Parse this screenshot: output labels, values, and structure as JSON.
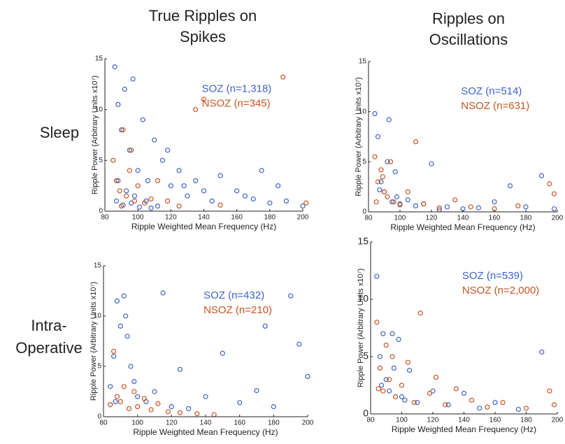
{
  "column_titles": [
    "True Ripples on Spikes",
    "Ripples on Oscillations"
  ],
  "row_labels": [
    "Sleep",
    "Intra-Operative"
  ],
  "chart_data": [
    {
      "type": "scatter",
      "xlabel": "Ripple Weighted Mean Frequency (Hz)",
      "ylabel": "Ripple Power (Arbitrary Units x10⁷)",
      "xlim": [
        80,
        200
      ],
      "ylim": [
        0,
        15
      ],
      "xticks": [
        80,
        100,
        120,
        140,
        160,
        180,
        200
      ],
      "yticks": [
        0,
        5,
        10,
        15
      ],
      "series": [
        {
          "name": "SOZ (n=1,318)",
          "color": "#3d63c9",
          "x": [
            86,
            88,
            90,
            92,
            95,
            97,
            100,
            103,
            106,
            110,
            115,
            120,
            125,
            130,
            135,
            140,
            145,
            150,
            160,
            170,
            180,
            190,
            200,
            88,
            93,
            98,
            105,
            112,
            118,
            128,
            87,
            91,
            96,
            101,
            108,
            165,
            175,
            185
          ],
          "y": [
            14.2,
            10.5,
            8,
            12,
            6,
            13,
            4,
            9,
            3,
            7,
            5,
            2.5,
            4,
            1.5,
            3,
            2,
            1,
            3.5,
            2,
            1.2,
            0.8,
            1,
            0.5,
            3,
            2,
            1.5,
            1,
            0.5,
            6,
            2.5,
            1,
            0.6,
            0.8,
            0.4,
            0.3,
            1.5,
            4,
            2.5
          ]
        },
        {
          "name": "NSOZ (n=345)",
          "color": "#c65422",
          "x": [
            85,
            87,
            89,
            91,
            93,
            95,
            98,
            100,
            104,
            108,
            112,
            118,
            125,
            135,
            140,
            150,
            188,
            202,
            90,
            96
          ],
          "y": [
            5,
            3,
            2,
            8,
            1.5,
            4,
            1,
            2.5,
            0.8,
            1.2,
            3,
            1,
            0.5,
            10,
            11,
            0.6,
            13.2,
            0.8,
            0.5,
            6
          ]
        }
      ]
    },
    {
      "type": "scatter",
      "xlabel": "Ripple Weighted Mean Frequency (Hz)",
      "ylabel": "Ripple Power (Arbitrary Units x10⁷)",
      "xlim": [
        80,
        200
      ],
      "ylim": [
        0,
        15
      ],
      "xticks": [
        80,
        100,
        120,
        140,
        160,
        180,
        200
      ],
      "yticks": [
        0,
        5,
        10,
        15
      ],
      "series": [
        {
          "name": "SOZ (n=514)",
          "color": "#3d63c9",
          "x": [
            84,
            86,
            88,
            90,
            92,
            95,
            98,
            100,
            105,
            110,
            120,
            130,
            140,
            150,
            160,
            170,
            180,
            190,
            198,
            87,
            93,
            97,
            115,
            125
          ],
          "y": [
            9.8,
            7.5,
            3,
            2,
            5,
            1,
            1.5,
            0.8,
            1.2,
            0.6,
            4.8,
            0.5,
            0.3,
            0.4,
            1,
            2.6,
            0.5,
            3.6,
            0.3,
            2.2,
            9.2,
            4,
            0.8,
            0.2
          ]
        },
        {
          "name": "NSOZ (n=631)",
          "color": "#c65422",
          "x": [
            84,
            86,
            88,
            90,
            92,
            94,
            96,
            100,
            105,
            110,
            115,
            125,
            135,
            145,
            160,
            175,
            195,
            198,
            85,
            89
          ],
          "y": [
            5.5,
            3,
            4.2,
            2,
            1.5,
            5,
            1,
            0.7,
            2,
            7,
            0.8,
            0.4,
            1.2,
            0.5,
            0.3,
            0.6,
            2.8,
            1.8,
            1,
            3.5
          ]
        }
      ]
    },
    {
      "type": "scatter",
      "xlabel": "Ripple Weighted Mean Frequency (Hz)",
      "ylabel": "Ripple Power (Arbitrary Units x10⁷)",
      "xlim": [
        80,
        200
      ],
      "ylim": [
        0,
        15
      ],
      "xticks": [
        80,
        100,
        120,
        140,
        160,
        180,
        200
      ],
      "yticks": [
        0,
        5,
        10,
        15
      ],
      "series": [
        {
          "name": "SOZ (n=432)",
          "color": "#3d63c9",
          "x": [
            84,
            86,
            88,
            90,
            92,
            94,
            96,
            98,
            100,
            105,
            110,
            115,
            120,
            125,
            130,
            140,
            150,
            160,
            170,
            175,
            180,
            190,
            195,
            200,
            87,
            93
          ],
          "y": [
            3,
            6,
            11.5,
            9,
            12,
            8,
            5,
            3.5,
            2,
            1.5,
            2.5,
            12.3,
            1,
            4.7,
            0.8,
            2,
            6.3,
            1.4,
            2.6,
            9,
            1,
            12,
            7.2,
            4,
            1.5,
            10
          ]
        },
        {
          "name": "NSOZ (n=210)",
          "color": "#c65422",
          "x": [
            84,
            86,
            88,
            90,
            92,
            95,
            98,
            100,
            104,
            108,
            112,
            118,
            125,
            135,
            145
          ],
          "y": [
            1.2,
            6.5,
            2,
            1.5,
            3,
            0.8,
            2.5,
            1,
            1.8,
            0.7,
            1.3,
            0.5,
            0.4,
            0.3,
            0.2
          ]
        }
      ]
    },
    {
      "type": "scatter",
      "xlabel": "Ripple Weighted Mean Frequency (Hz)",
      "ylabel": "Ripple Power (Arbitrary Units x10⁷)",
      "xlim": [
        80,
        200
      ],
      "ylim": [
        0,
        15
      ],
      "xticks": [
        80,
        100,
        120,
        140,
        160,
        180,
        200
      ],
      "yticks": [
        0,
        5,
        10,
        15
      ],
      "series": [
        {
          "name": "SOZ (n=539)",
          "color": "#3d63c9",
          "x": [
            84,
            86,
            88,
            90,
            92,
            95,
            98,
            100,
            105,
            110,
            120,
            130,
            140,
            150,
            160,
            175,
            190,
            87,
            94,
            102
          ],
          "y": [
            12,
            5,
            7,
            3,
            2,
            4,
            6.5,
            1.5,
            3.8,
            1,
            2,
            0.8,
            1.8,
            0.5,
            1,
            0.4,
            5.4,
            2.5,
            7,
            1.2
          ]
        },
        {
          "name": "NSOZ (n=2,000)",
          "color": "#c65422",
          "x": [
            84,
            86,
            88,
            90,
            92,
            94,
            96,
            100,
            104,
            108,
            112,
            118,
            122,
            128,
            135,
            145,
            155,
            165,
            180,
            195,
            198,
            85
          ],
          "y": [
            8,
            4,
            2,
            6,
            3,
            5,
            1.5,
            2.5,
            4.5,
            1,
            8.8,
            1.8,
            3.2,
            0.8,
            2.2,
            1.2,
            0.6,
            1,
            0.5,
            2,
            0.8,
            2.2
          ]
        }
      ]
    }
  ]
}
